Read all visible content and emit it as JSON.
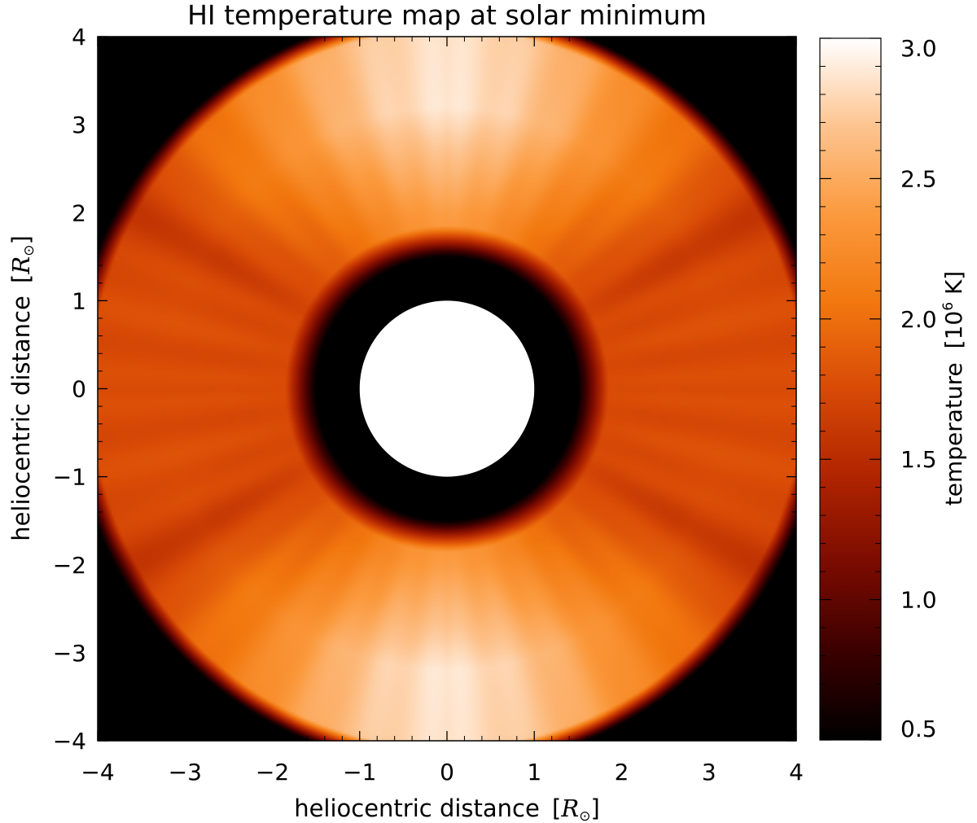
{
  "chart_data": {
    "type": "heatmap",
    "title": "HI temperature map at solar minimum",
    "xlabel": "heliocentric distance",
    "ylabel": "heliocentric distance",
    "axis_unit_symbol": "R",
    "axis_unit_subscript": "⊙",
    "xlim": [
      -4,
      4
    ],
    "ylim": [
      -4,
      4
    ],
    "x_ticks": [
      -4,
      -3,
      -2,
      -1,
      0,
      1,
      2,
      3,
      4
    ],
    "y_ticks": [
      -4,
      -3,
      -2,
      -1,
      0,
      1,
      2,
      3,
      4
    ],
    "tick_labels": [
      "−4",
      "−3",
      "−2",
      "−1",
      "0",
      "1",
      "2",
      "3",
      "4"
    ],
    "grid": false,
    "colorbar": {
      "label": "temperature",
      "unit_prefix": "10",
      "unit_exponent": "6",
      "unit_suffix": " K",
      "range": [
        0.5,
        3.0
      ],
      "ticks": [
        0.5,
        1.0,
        1.5,
        2.0,
        2.5,
        3.0
      ],
      "tick_labels": [
        "0.5",
        "1.0",
        "1.5",
        "2.0",
        "2.5",
        "3.0"
      ],
      "colormap": [
        "#000000",
        "#3a0000",
        "#7a0b00",
        "#b02400",
        "#d84a06",
        "#f2780f",
        "#fb9a3e",
        "#fdc490",
        "#ffffff"
      ]
    },
    "field": {
      "occulter_radius": 1.0,
      "inner_dark_radius": 1.5,
      "outer_radius": 4.3,
      "polar_max": 2.75,
      "equatorial_value": 1.75,
      "dark_lane_angle_deg": 30,
      "dark_lane_value": 1.55
    }
  }
}
